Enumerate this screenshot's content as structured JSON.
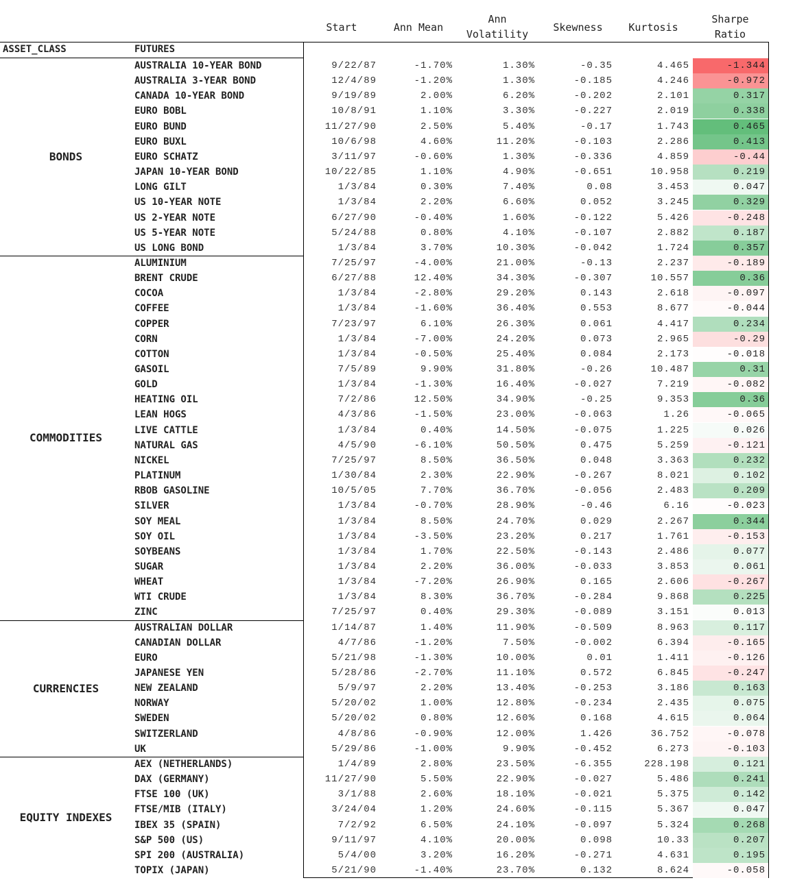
{
  "columns": {
    "start": "Start",
    "ann_mean": "Ann Mean",
    "ann_vol_line1": "Ann",
    "ann_vol_line2": "Volatility",
    "skewness": "Skewness",
    "kurtosis": "Kurtosis",
    "sharpe_line1": "Sharpe",
    "sharpe_line2": "Ratio"
  },
  "index_headers": {
    "asset_class": "ASSET_CLASS",
    "futures": "FUTURES"
  },
  "colors": {
    "negative": "#f8696b",
    "positive": "#63be7b",
    "neutral": "#ffffff"
  },
  "groups": [
    {
      "name": "BONDS",
      "rows": [
        [
          "AUSTRALIA 10-YEAR BOND",
          "9/22/87",
          "-1.70%",
          "1.30%",
          "-0.35",
          "4.465",
          "-1.344"
        ],
        [
          "AUSTRALIA 3-YEAR BOND",
          "12/4/89",
          "-1.20%",
          "1.30%",
          "-0.185",
          "4.246",
          "-0.972"
        ],
        [
          "CANADA 10-YEAR BOND",
          "9/19/89",
          "2.00%",
          "6.20%",
          "-0.202",
          "2.101",
          "0.317"
        ],
        [
          "EURO BOBL",
          "10/8/91",
          "1.10%",
          "3.30%",
          "-0.227",
          "2.019",
          "0.338"
        ],
        [
          "EURO BUND",
          "11/27/90",
          "2.50%",
          "5.40%",
          "-0.17",
          "1.743",
          "0.465"
        ],
        [
          "EURO BUXL",
          "10/6/98",
          "4.60%",
          "11.20%",
          "-0.103",
          "2.286",
          "0.413"
        ],
        [
          "EURO SCHATZ",
          "3/11/97",
          "-0.60%",
          "1.30%",
          "-0.336",
          "4.859",
          "-0.44"
        ],
        [
          "JAPAN 10-YEAR BOND",
          "10/22/85",
          "1.10%",
          "4.90%",
          "-0.651",
          "10.958",
          "0.219"
        ],
        [
          "LONG GILT",
          "1/3/84",
          "0.30%",
          "7.40%",
          "0.08",
          "3.453",
          "0.047"
        ],
        [
          "US 10-YEAR NOTE",
          "1/3/84",
          "2.20%",
          "6.60%",
          "0.052",
          "3.245",
          "0.329"
        ],
        [
          "US 2-YEAR NOTE",
          "6/27/90",
          "-0.40%",
          "1.60%",
          "-0.122",
          "5.426",
          "-0.248"
        ],
        [
          "US 5-YEAR NOTE",
          "5/24/88",
          "0.80%",
          "4.10%",
          "-0.107",
          "2.882",
          "0.187"
        ],
        [
          "US LONG BOND",
          "1/3/84",
          "3.70%",
          "10.30%",
          "-0.042",
          "1.724",
          "0.357"
        ]
      ]
    },
    {
      "name": "COMMODITIES",
      "rows": [
        [
          "ALUMINIUM",
          "7/25/97",
          "-4.00%",
          "21.00%",
          "-0.13",
          "2.237",
          "-0.189"
        ],
        [
          "BRENT CRUDE",
          "6/27/88",
          "12.40%",
          "34.30%",
          "-0.307",
          "10.557",
          "0.36"
        ],
        [
          "COCOA",
          "1/3/84",
          "-2.80%",
          "29.20%",
          "0.143",
          "2.618",
          "-0.097"
        ],
        [
          "COFFEE",
          "1/3/84",
          "-1.60%",
          "36.40%",
          "0.553",
          "8.677",
          "-0.044"
        ],
        [
          "COPPER",
          "7/23/97",
          "6.10%",
          "26.30%",
          "0.061",
          "4.417",
          "0.234"
        ],
        [
          "CORN",
          "1/3/84",
          "-7.00%",
          "24.20%",
          "0.073",
          "2.965",
          "-0.29"
        ],
        [
          "COTTON",
          "1/3/84",
          "-0.50%",
          "25.40%",
          "0.084",
          "2.173",
          "-0.018"
        ],
        [
          "GASOIL",
          "7/5/89",
          "9.90%",
          "31.80%",
          "-0.26",
          "10.487",
          "0.31"
        ],
        [
          "GOLD",
          "1/3/84",
          "-1.30%",
          "16.40%",
          "-0.027",
          "7.219",
          "-0.082"
        ],
        [
          "HEATING OIL",
          "7/2/86",
          "12.50%",
          "34.90%",
          "-0.25",
          "9.353",
          "0.36"
        ],
        [
          "LEAN HOGS",
          "4/3/86",
          "-1.50%",
          "23.00%",
          "-0.063",
          "1.26",
          "-0.065"
        ],
        [
          "LIVE CATTLE",
          "1/3/84",
          "0.40%",
          "14.50%",
          "-0.075",
          "1.225",
          "0.026"
        ],
        [
          "NATURAL GAS",
          "4/5/90",
          "-6.10%",
          "50.50%",
          "0.475",
          "5.259",
          "-0.121"
        ],
        [
          "NICKEL",
          "7/25/97",
          "8.50%",
          "36.50%",
          "0.048",
          "3.363",
          "0.232"
        ],
        [
          "PLATINUM",
          "1/30/84",
          "2.30%",
          "22.90%",
          "-0.267",
          "8.021",
          "0.102"
        ],
        [
          "RBOB GASOLINE",
          "10/5/05",
          "7.70%",
          "36.70%",
          "-0.056",
          "2.483",
          "0.209"
        ],
        [
          "SILVER",
          "1/3/84",
          "-0.70%",
          "28.90%",
          "-0.46",
          "6.16",
          "-0.023"
        ],
        [
          "SOY MEAL",
          "1/3/84",
          "8.50%",
          "24.70%",
          "0.029",
          "2.267",
          "0.344"
        ],
        [
          "SOY OIL",
          "1/3/84",
          "-3.50%",
          "23.20%",
          "0.217",
          "1.761",
          "-0.153"
        ],
        [
          "SOYBEANS",
          "1/3/84",
          "1.70%",
          "22.50%",
          "-0.143",
          "2.486",
          "0.077"
        ],
        [
          "SUGAR",
          "1/3/84",
          "2.20%",
          "36.00%",
          "-0.033",
          "3.853",
          "0.061"
        ],
        [
          "WHEAT",
          "1/3/84",
          "-7.20%",
          "26.90%",
          "0.165",
          "2.606",
          "-0.267"
        ],
        [
          "WTI CRUDE",
          "1/3/84",
          "8.30%",
          "36.70%",
          "-0.284",
          "9.868",
          "0.225"
        ],
        [
          "ZINC",
          "7/25/97",
          "0.40%",
          "29.30%",
          "-0.089",
          "3.151",
          "0.013"
        ]
      ]
    },
    {
      "name": "CURRENCIES",
      "rows": [
        [
          "AUSTRALIAN DOLLAR",
          "1/14/87",
          "1.40%",
          "11.90%",
          "-0.509",
          "8.963",
          "0.117"
        ],
        [
          "CANADIAN DOLLAR",
          "4/7/86",
          "-1.20%",
          "7.50%",
          "-0.002",
          "6.394",
          "-0.165"
        ],
        [
          "EURO",
          "5/21/98",
          "-1.30%",
          "10.00%",
          "0.01",
          "1.411",
          "-0.126"
        ],
        [
          "JAPANESE YEN",
          "5/28/86",
          "-2.70%",
          "11.10%",
          "0.572",
          "6.845",
          "-0.247"
        ],
        [
          "NEW ZEALAND",
          "5/9/97",
          "2.20%",
          "13.40%",
          "-0.253",
          "3.186",
          "0.163"
        ],
        [
          "NORWAY",
          "5/20/02",
          "1.00%",
          "12.80%",
          "-0.234",
          "2.435",
          "0.075"
        ],
        [
          "SWEDEN",
          "5/20/02",
          "0.80%",
          "12.60%",
          "0.168",
          "4.615",
          "0.064"
        ],
        [
          "SWITZERLAND",
          "4/8/86",
          "-0.90%",
          "12.00%",
          "1.426",
          "36.752",
          "-0.078"
        ],
        [
          "UK",
          "5/29/86",
          "-1.00%",
          "9.90%",
          "-0.452",
          "6.273",
          "-0.103"
        ]
      ]
    },
    {
      "name": "EQUITY INDEXES",
      "rows": [
        [
          "AEX (NETHERLANDS)",
          "1/4/89",
          "2.80%",
          "23.50%",
          "-6.355",
          "228.198",
          "0.121"
        ],
        [
          "DAX (GERMANY)",
          "11/27/90",
          "5.50%",
          "22.90%",
          "-0.027",
          "5.486",
          "0.241"
        ],
        [
          "FTSE 100 (UK)",
          "3/1/88",
          "2.60%",
          "18.10%",
          "-0.021",
          "5.375",
          "0.142"
        ],
        [
          "FTSE/MIB (ITALY)",
          "3/24/04",
          "1.20%",
          "24.60%",
          "-0.115",
          "5.367",
          "0.047"
        ],
        [
          "IBEX 35 (SPAIN)",
          "7/2/92",
          "6.50%",
          "24.10%",
          "-0.097",
          "5.324",
          "0.268"
        ],
        [
          "S&P 500 (US)",
          "9/11/97",
          "4.10%",
          "20.00%",
          "0.098",
          "10.33",
          "0.207"
        ],
        [
          "SPI 200 (AUSTRALIA)",
          "5/4/00",
          "3.20%",
          "16.20%",
          "-0.271",
          "4.631",
          "0.195"
        ],
        [
          "TOPIX (JAPAN)",
          "5/21/90",
          "-1.40%",
          "23.70%",
          "0.132",
          "8.624",
          "-0.058"
        ]
      ]
    }
  ]
}
